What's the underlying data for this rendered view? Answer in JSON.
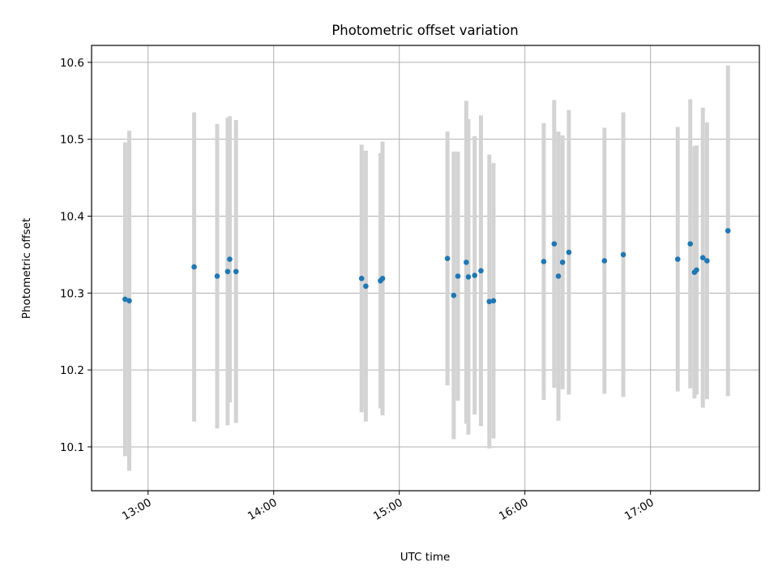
{
  "chart_data": {
    "type": "scatter",
    "title": "Photometric offset variation",
    "xlabel": "UTC time",
    "ylabel": "Photometric offset",
    "x_ticks": [
      "13:00",
      "14:00",
      "15:00",
      "16:00",
      "17:00"
    ],
    "y_ticks": [
      "10.1",
      "10.2",
      "10.3",
      "10.4",
      "10.5",
      "10.6"
    ],
    "xlim": [
      "12:33",
      "17:52"
    ],
    "ylim": [
      10.043,
      10.622
    ],
    "grid": true,
    "errorbar_color": "#d3d3d3",
    "marker_color": "#1f77b4",
    "points": [
      {
        "time": "12:49",
        "y": 10.292,
        "err": 0.204
      },
      {
        "time": "12:51",
        "y": 10.29,
        "err": 0.221
      },
      {
        "time": "13:22",
        "y": 10.334,
        "err": 0.201
      },
      {
        "time": "13:33",
        "y": 10.322,
        "err": 0.198
      },
      {
        "time": "13:38",
        "y": 10.328,
        "err": 0.2
      },
      {
        "time": "13:39",
        "y": 10.344,
        "err": 0.186
      },
      {
        "time": "13:42",
        "y": 10.328,
        "err": 0.197
      },
      {
        "time": "14:42",
        "y": 10.319,
        "err": 0.174
      },
      {
        "time": "14:44",
        "y": 10.309,
        "err": 0.176
      },
      {
        "time": "14:51",
        "y": 10.316,
        "err": 0.166
      },
      {
        "time": "14:52",
        "y": 10.319,
        "err": 0.178
      },
      {
        "time": "15:23",
        "y": 10.345,
        "err": 0.165
      },
      {
        "time": "15:26",
        "y": 10.297,
        "err": 0.187
      },
      {
        "time": "15:28",
        "y": 10.322,
        "err": 0.162
      },
      {
        "time": "15:32",
        "y": 10.34,
        "err": 0.21
      },
      {
        "time": "15:33",
        "y": 10.321,
        "err": 0.205
      },
      {
        "time": "15:36",
        "y": 10.323,
        "err": 0.181
      },
      {
        "time": "15:39",
        "y": 10.329,
        "err": 0.202
      },
      {
        "time": "15:43",
        "y": 10.289,
        "err": 0.191
      },
      {
        "time": "15:45",
        "y": 10.29,
        "err": 0.179
      },
      {
        "time": "16:09",
        "y": 10.341,
        "err": 0.18
      },
      {
        "time": "16:14",
        "y": 10.364,
        "err": 0.187
      },
      {
        "time": "16:16",
        "y": 10.322,
        "err": 0.188
      },
      {
        "time": "16:18",
        "y": 10.34,
        "err": 0.165
      },
      {
        "time": "16:21",
        "y": 10.353,
        "err": 0.185
      },
      {
        "time": "16:38",
        "y": 10.342,
        "err": 0.173
      },
      {
        "time": "16:47",
        "y": 10.35,
        "err": 0.185
      },
      {
        "time": "17:13",
        "y": 10.344,
        "err": 0.172
      },
      {
        "time": "17:19",
        "y": 10.364,
        "err": 0.188
      },
      {
        "time": "17:21",
        "y": 10.327,
        "err": 0.164
      },
      {
        "time": "17:22",
        "y": 10.33,
        "err": 0.162
      },
      {
        "time": "17:25",
        "y": 10.346,
        "err": 0.195
      },
      {
        "time": "17:27",
        "y": 10.342,
        "err": 0.18
      },
      {
        "time": "17:37",
        "y": 10.381,
        "err": 0.215
      }
    ]
  }
}
